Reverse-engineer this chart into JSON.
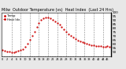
{
  "title": "Milw  Outdoor Temperature (vs)  Heat Index  (Last 24 Hrs)",
  "title_fontsize": 3.5,
  "bg_color": "#e8e8e8",
  "plot_bg_color": "#ffffff",
  "grid_color": "#888888",
  "line_color": "#cc0000",
  "x": [
    0,
    1,
    2,
    3,
    4,
    5,
    6,
    7,
    8,
    9,
    10,
    11,
    12,
    13,
    14,
    15,
    16,
    17,
    18,
    19,
    20,
    21,
    22,
    23,
    24,
    25,
    26,
    27,
    28,
    29,
    30,
    31,
    32,
    33,
    34,
    35,
    36,
    37,
    38,
    39,
    40,
    41,
    42,
    43,
    44,
    45,
    46,
    47
  ],
  "y": [
    52,
    51,
    50,
    50,
    49,
    49,
    50,
    51,
    52,
    53,
    56,
    60,
    65,
    70,
    76,
    82,
    87,
    91,
    93,
    94,
    94,
    93,
    91,
    89,
    87,
    85,
    82,
    79,
    76,
    73,
    70,
    68,
    66,
    64,
    63,
    62,
    61,
    60,
    59,
    58,
    58,
    57,
    57,
    57,
    56,
    56,
    57,
    56
  ],
  "ylim": [
    44,
    100
  ],
  "xlim": [
    -0.5,
    47.5
  ],
  "ylabel_fontsize": 3.0,
  "xlabel_fontsize": 2.5,
  "yticks": [
    50,
    55,
    60,
    65,
    70,
    75,
    80,
    85,
    90,
    95,
    100
  ],
  "markersize": 1.2,
  "linewidth": 0.0,
  "vgrid_positions": [
    4,
    8,
    12,
    16,
    20,
    24,
    28,
    32,
    36,
    40,
    44
  ],
  "legend_labels": [
    "Temp",
    "Heat Idx"
  ],
  "legend_color": "#cc0000"
}
